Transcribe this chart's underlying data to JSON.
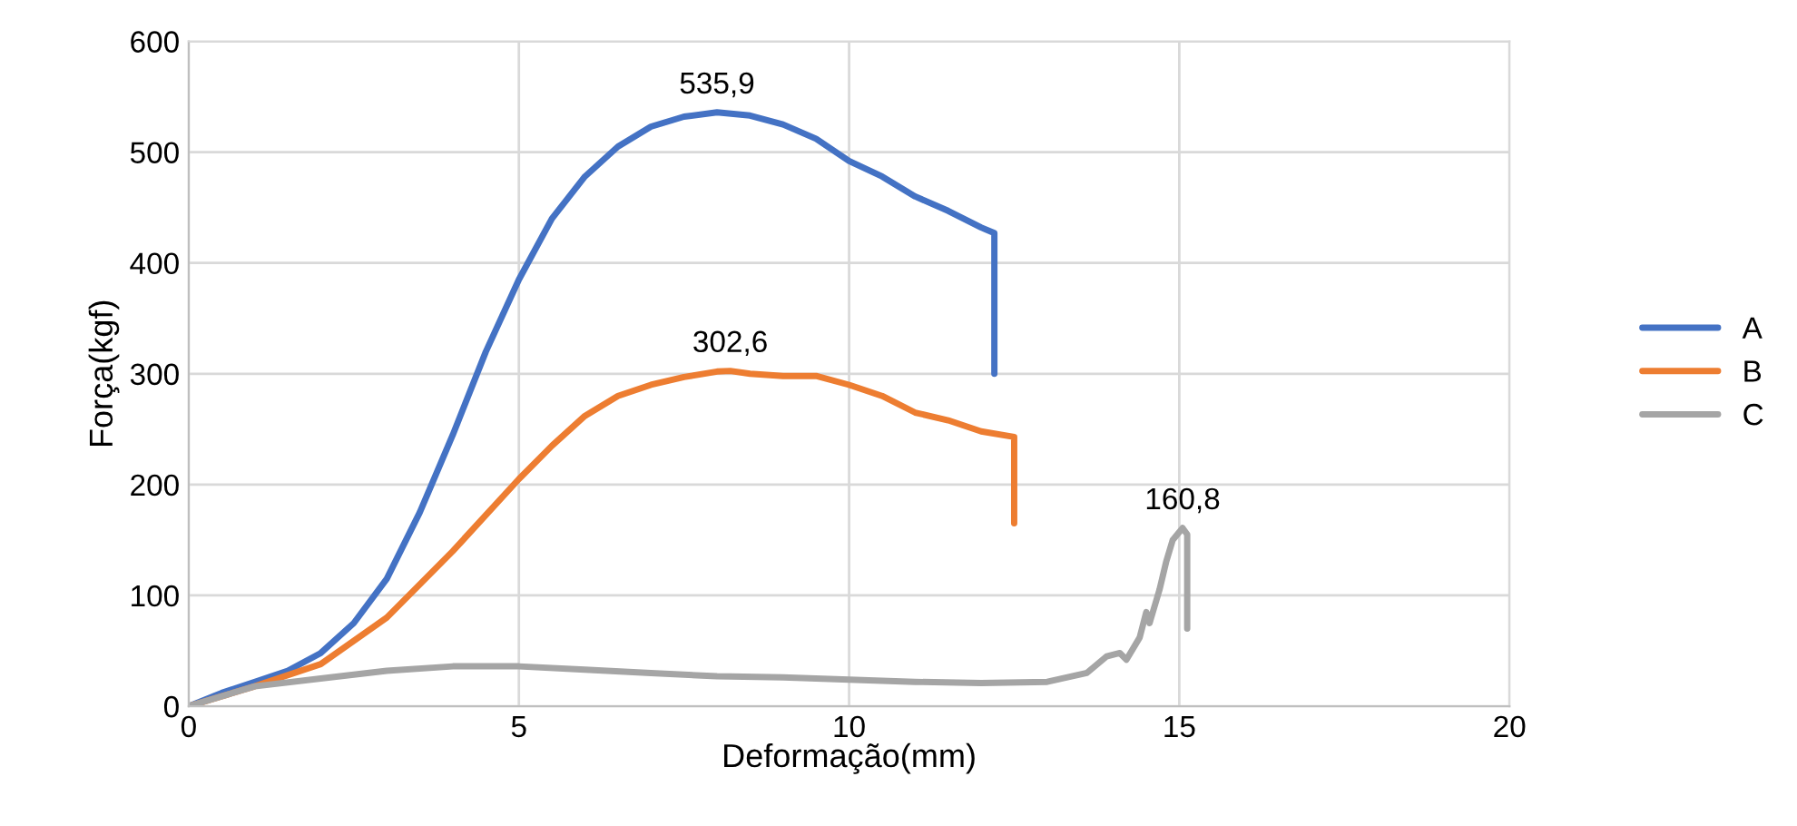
{
  "chart_data": {
    "type": "line",
    "xlabel": "Deformação(mm)",
    "ylabel": "Força(kgf)",
    "xlim": [
      0,
      20
    ],
    "xticks": [
      0,
      5,
      10,
      15,
      20
    ],
    "ylim": [
      0,
      600
    ],
    "yticks": [
      0,
      100,
      200,
      300,
      400,
      500,
      600
    ],
    "grid": true,
    "legend": "right",
    "marker": "none",
    "line_style": "solid",
    "series": [
      {
        "name": "A",
        "color": "#4472c4",
        "x": [
          0,
          0.5,
          1,
          1.5,
          2,
          2.5,
          3,
          3.5,
          4,
          4.5,
          5,
          5.5,
          6,
          6.5,
          7,
          7.5,
          8,
          8.5,
          9,
          9.5,
          10,
          10.5,
          11,
          11.5,
          12,
          12.2,
          12.2
        ],
        "values": [
          0,
          12,
          22,
          32,
          48,
          75,
          115,
          175,
          245,
          320,
          385,
          440,
          478,
          505,
          523,
          532,
          535.9,
          533,
          525,
          512,
          492,
          478,
          460,
          447,
          432,
          427,
          300
        ]
      },
      {
        "name": "B",
        "color": "#ed7d31",
        "x": [
          0,
          1,
          2,
          3,
          4,
          5,
          5.5,
          6,
          6.5,
          7,
          7.5,
          8,
          8.2,
          8.5,
          9,
          9.5,
          10,
          10.5,
          11,
          11.5,
          12,
          12.5,
          12.5
        ],
        "values": [
          0,
          18,
          38,
          80,
          140,
          205,
          235,
          262,
          280,
          290,
          297,
          302,
          302.6,
          300,
          298,
          298,
          290,
          280,
          265,
          258,
          248,
          243,
          165
        ]
      },
      {
        "name": "C",
        "color": "#a5a5a5",
        "x": [
          0,
          1,
          2,
          3,
          4,
          5,
          6,
          7,
          8,
          9,
          10,
          11,
          12,
          13,
          13.6,
          13.9,
          14.1,
          14.2,
          14.4,
          14.5,
          14.55,
          14.7,
          14.8,
          14.9,
          15.05,
          15.12,
          15.12,
          15.12
        ],
        "values": [
          0,
          18,
          25,
          32,
          36,
          36,
          33,
          30,
          27,
          26,
          24,
          22,
          21,
          22,
          30,
          45,
          48,
          42,
          62,
          85,
          75,
          105,
          130,
          150,
          160.8,
          155,
          120,
          70
        ]
      }
    ],
    "annotations": [
      {
        "text": "535,9",
        "x": 8,
        "y": 535.9
      },
      {
        "text": "302,6",
        "x": 8.2,
        "y": 302.6
      },
      {
        "text": "160,8",
        "x": 15.05,
        "y": 160.8
      }
    ]
  }
}
